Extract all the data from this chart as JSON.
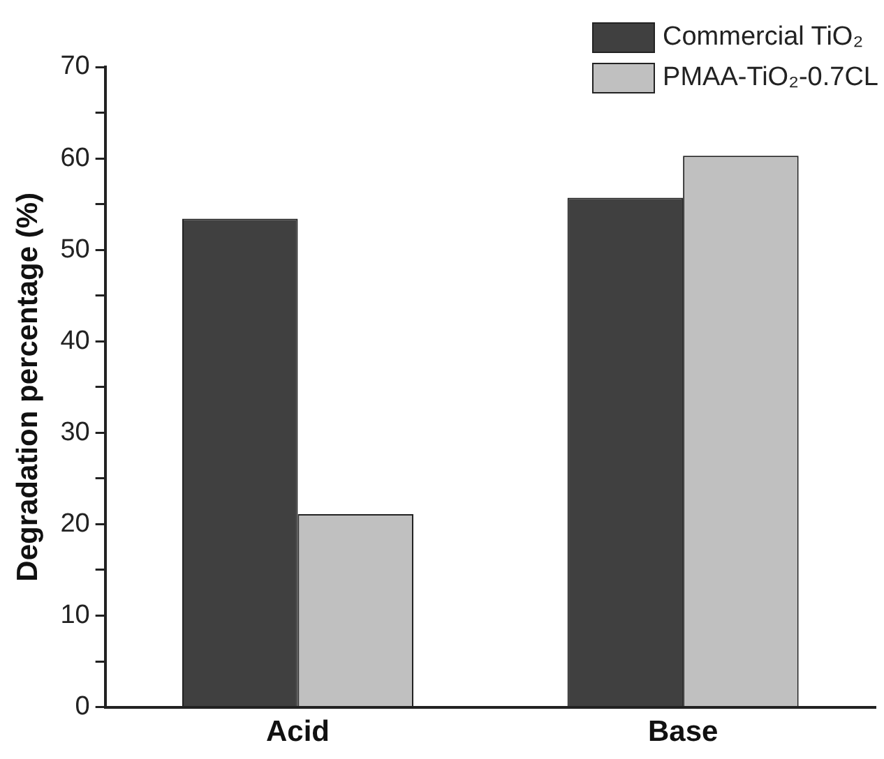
{
  "chart_data": {
    "type": "bar",
    "ylabel": "Degradation percentage (%)",
    "categories": [
      "Acid",
      "Base"
    ],
    "series": [
      {
        "name": "Commercial TiO₂",
        "color": "#404040",
        "values": [
          53.4,
          55.7
        ]
      },
      {
        "name": "PMAA-TiO₂-0.7CL",
        "color": "#c0c0c0",
        "values": [
          21.1,
          60.3
        ]
      }
    ],
    "ylim": [
      0,
      70
    ],
    "yticks": [
      0,
      {
        "value": 5,
        "label": null
      },
      10,
      {
        "value": 15,
        "label": null
      },
      20,
      {
        "value": 25,
        "label": null
      },
      30,
      {
        "value": 35,
        "label": null
      },
      40,
      {
        "value": 45,
        "label": null
      },
      50,
      {
        "value": 55,
        "label": null
      },
      60,
      {
        "value": 65,
        "label": null
      },
      70
    ],
    "grid": false,
    "legend": "top right"
  }
}
